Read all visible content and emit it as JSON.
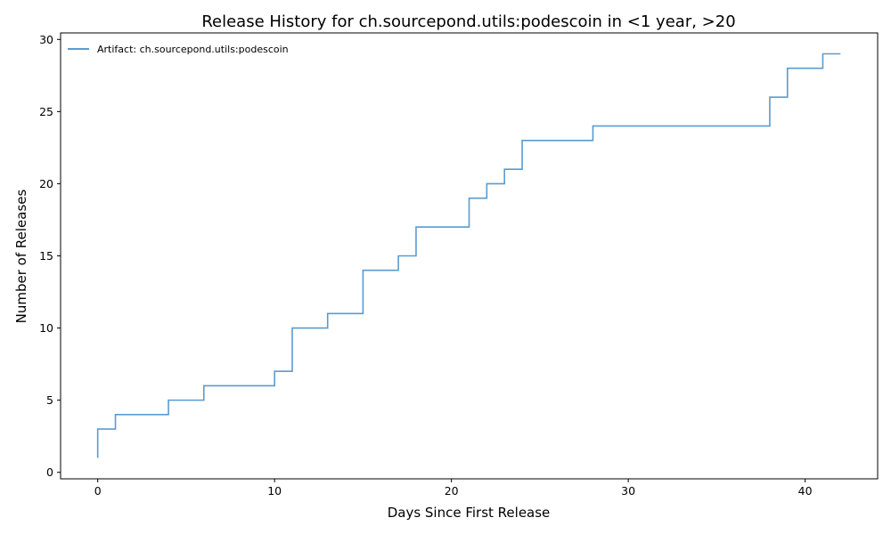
{
  "chart_data": {
    "type": "line",
    "step": "post",
    "title": "Release History for ch.sourcepond.utils:podescoin in <1 year, >20",
    "xlabel": "Days Since First Release",
    "ylabel": "Number of Releases",
    "xlim": [
      -2.1,
      44.1
    ],
    "ylim": [
      -0.45,
      30.45
    ],
    "xticks": [
      0,
      10,
      20,
      30,
      40
    ],
    "yticks": [
      0,
      5,
      10,
      15,
      20,
      25,
      30
    ],
    "grid": false,
    "legend_position": "top-left",
    "series": [
      {
        "name": "Artifact: ch.sourcepond.utils:podescoin",
        "color": "#5a9bd0",
        "x": [
          0,
          0,
          1,
          4,
          6,
          10,
          11,
          13,
          15,
          17,
          18,
          21,
          22,
          23,
          24,
          28,
          38,
          39,
          41,
          42
        ],
        "y": [
          1,
          3,
          4,
          5,
          6,
          7,
          10,
          11,
          14,
          15,
          17,
          19,
          20,
          21,
          23,
          24,
          26,
          28,
          29,
          29
        ]
      }
    ]
  }
}
